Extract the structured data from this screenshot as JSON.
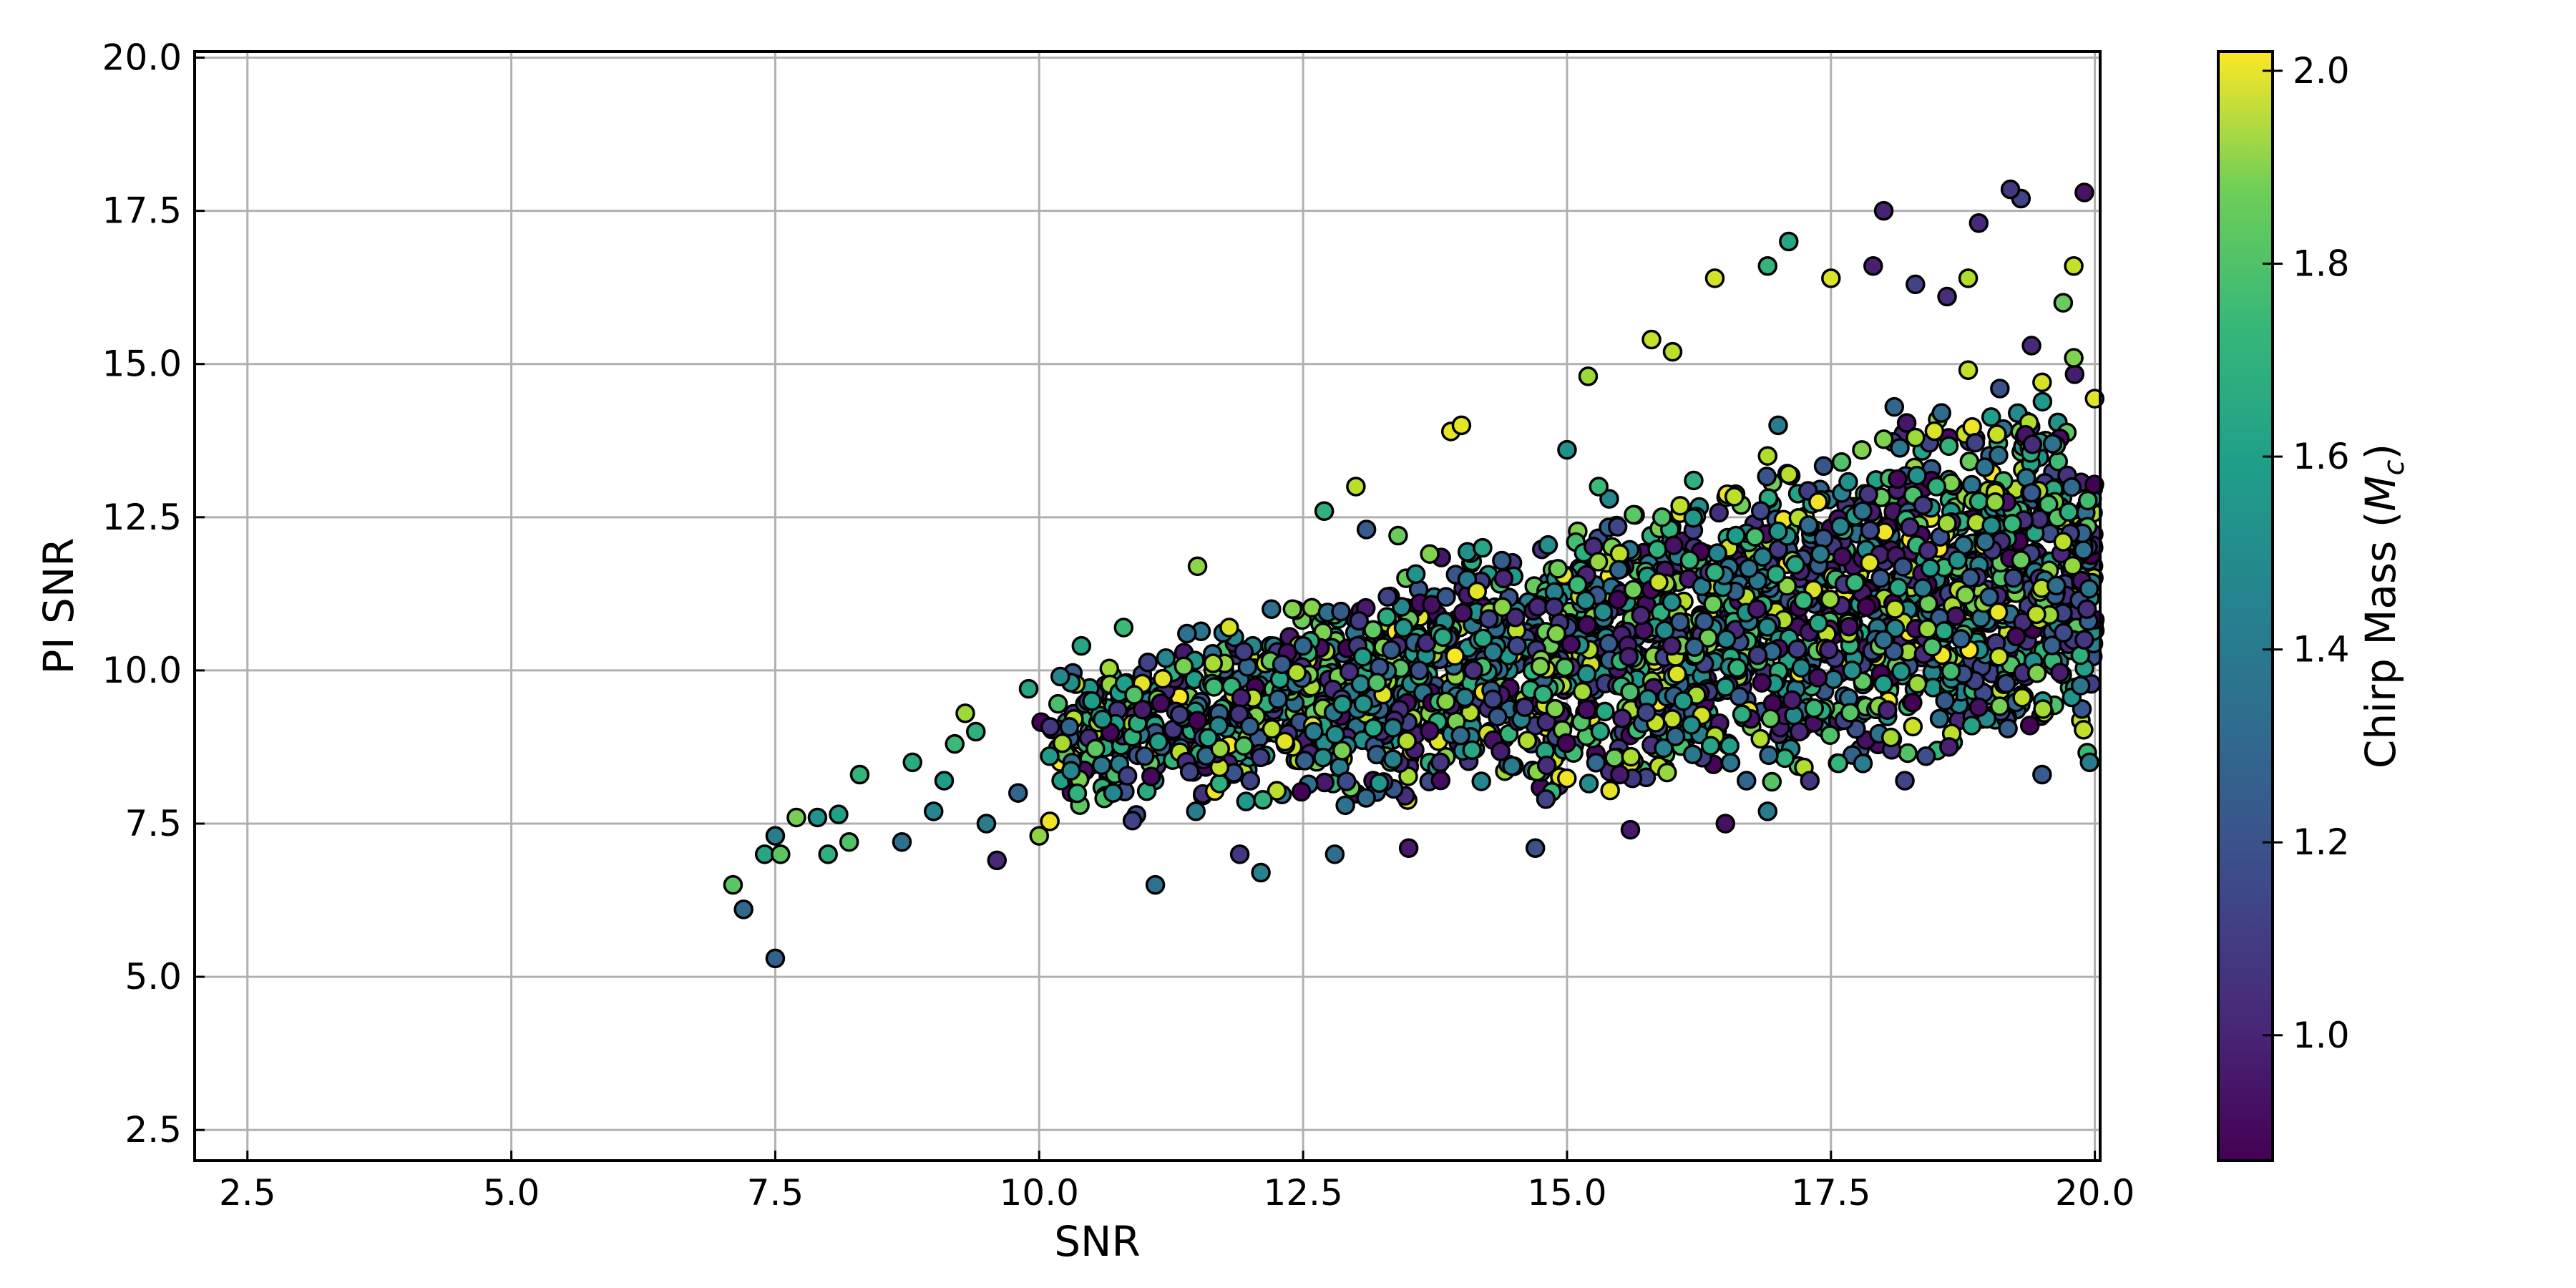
{
  "chart_data": {
    "type": "scatter",
    "xlabel": "SNR",
    "ylabel": "PI SNR",
    "xlim": [
      2.0,
      20.05
    ],
    "ylim": [
      2.0,
      20.1
    ],
    "xticks": [
      "2.5",
      "5.0",
      "7.5",
      "10.0",
      "12.5",
      "15.0",
      "17.5",
      "20.0"
    ],
    "yticks": [
      "2.5",
      "5.0",
      "7.5",
      "10.0",
      "12.5",
      "15.0",
      "17.5",
      "20.0"
    ],
    "grid": true,
    "colorbar": {
      "label": "Chirp Mass (",
      "label_math_base": "M",
      "label_math_sub": "c",
      "label_close": ")",
      "range": [
        0.87,
        2.02
      ],
      "ticks": [
        "1.0",
        "1.2",
        "1.4",
        "1.6",
        "1.8",
        "2.0"
      ],
      "colormap": "viridis"
    },
    "marker_edge_color": "#000000",
    "points_x": [
      7.1,
      7.2,
      7.4,
      7.5,
      7.5,
      7.55,
      7.7,
      8.0,
      8.2,
      8.3,
      7.9,
      8.1,
      8.7,
      8.8,
      9.0,
      9.1,
      9.3,
      9.5,
      9.6,
      9.8,
      10.0,
      10.3,
      11.1,
      12.1,
      11.9,
      12.8,
      13.5,
      14.7,
      15.6,
      16.5,
      16.9,
      17.3,
      18.2,
      19.5,
      19.95,
      19.3,
      19.2,
      18.9,
      18.0,
      17.9,
      17.1,
      16.4,
      16.9,
      19.7,
      19.4,
      19.9,
      18.6,
      18.3,
      13.9,
      15.8,
      13.0,
      12.7,
      11.5,
      10.8,
      10.4,
      11.8,
      14.0,
      15.2,
      16.0,
      17.5,
      18.8,
      19.8,
      10.5,
      11.2,
      12.2,
      13.1,
      14.2,
      15.0,
      16.2,
      17.0,
      18.1,
      19.1,
      9.2,
      9.9,
      10.6,
      11.4,
      12.3,
      13.3,
      14.4,
      15.4,
      16.6,
      17.6,
      18.5,
      19.6,
      9.4,
      10.1,
      10.9,
      11.7,
      12.5,
      13.6,
      14.6,
      15.7,
      16.8,
      17.8,
      18.7,
      19.4,
      12.0,
      13.8,
      15.5,
      17.2,
      18.9,
      11.0,
      12.9,
      14.8,
      16.7,
      18.4,
      19.9,
      10.7,
      12.6,
      14.1,
      16.1,
      17.7,
      19.0,
      13.4,
      15.1,
      16.3,
      17.4,
      18.6,
      19.7,
      11.6,
      13.2,
      14.9,
      16.4,
      18.0,
      19.3,
      12.4,
      14.3,
      15.9,
      17.1,
      18.3,
      19.5,
      10.2,
      13.7,
      15.3,
      16.9,
      18.8,
      19.8
    ],
    "points_y": [
      6.5,
      6.1,
      7.0,
      5.3,
      7.3,
      7.0,
      7.6,
      7.0,
      7.2,
      8.3,
      7.6,
      7.65,
      7.2,
      8.5,
      7.7,
      8.2,
      9.3,
      7.5,
      6.9,
      8.0,
      7.3,
      9.8,
      6.5,
      6.7,
      7.0,
      7.0,
      7.1,
      7.1,
      7.4,
      7.5,
      7.7,
      8.2,
      8.2,
      8.3,
      8.5,
      17.7,
      17.85,
      17.3,
      17.5,
      16.6,
      17.0,
      16.4,
      16.6,
      16.0,
      15.3,
      17.8,
      16.1,
      16.3,
      13.9,
      15.4,
      13.0,
      12.6,
      11.7,
      10.7,
      10.4,
      10.7,
      14.0,
      14.8,
      15.2,
      16.4,
      16.4,
      16.6,
      9.5,
      10.2,
      11.0,
      12.3,
      12.0,
      13.6,
      13.1,
      14.0,
      14.3,
      14.6,
      8.8,
      9.7,
      9.2,
      10.6,
      10.1,
      11.2,
      11.5,
      12.8,
      12.2,
      13.4,
      13.0,
      13.7,
      9.0,
      8.6,
      9.6,
      9.1,
      10.4,
      10.0,
      9.4,
      10.9,
      11.0,
      12.6,
      11.8,
      12.9,
      8.2,
      8.5,
      8.3,
      9.0,
      9.4,
      8.6,
      7.8,
      7.9,
      8.2,
      8.6,
      10.5,
      8.0,
      9.0,
      8.7,
      9.5,
      10.0,
      11.2,
      12.2,
      11.4,
      10.8,
      11.9,
      12.4,
      12.1,
      8.9,
      9.8,
      10.6,
      11.6,
      10.5,
      11.8,
      11.0,
      10.3,
      12.5,
      13.2,
      13.8,
      14.7,
      9.9,
      11.9,
      13.0,
      13.5,
      14.9,
      15.1
    ],
    "points_c": [
      1.72,
      1.25,
      1.55,
      1.22,
      1.35,
      1.72,
      1.78,
      1.6,
      1.7,
      1.62,
      1.45,
      1.52,
      1.3,
      1.58,
      1.4,
      1.5,
      1.85,
      1.35,
      1.0,
      1.25,
      1.82,
      1.45,
      1.3,
      1.38,
      1.05,
      1.28,
      0.95,
      1.15,
      0.95,
      0.92,
      1.35,
      1.05,
      1.1,
      1.2,
      1.35,
      1.1,
      1.05,
      1.0,
      0.98,
      0.97,
      1.55,
      1.95,
      1.62,
      1.75,
      1.0,
      0.93,
      1.02,
      1.1,
      1.98,
      1.92,
      1.9,
      1.6,
      1.82,
      1.65,
      1.55,
      1.95,
      1.98,
      1.85,
      1.9,
      1.96,
      1.88,
      1.92,
      1.5,
      1.4,
      1.3,
      1.2,
      1.55,
      1.45,
      1.6,
      1.35,
      1.25,
      1.15,
      1.65,
      1.55,
      1.45,
      1.3,
      1.2,
      1.1,
      1.0,
      1.4,
      1.5,
      1.7,
      1.6,
      1.3,
      1.6,
      1.5,
      1.7,
      1.4,
      1.25,
      1.15,
      1.05,
      1.0,
      0.95,
      1.3,
      1.45,
      1.2,
      1.1,
      1.05,
      0.95,
      1.0,
      0.92,
      1.2,
      1.3,
      1.1,
      1.25,
      1.15,
      1.05,
      1.4,
      1.35,
      1.55,
      1.5,
      1.45,
      1.25,
      1.75,
      1.65,
      1.2,
      1.35,
      1.85,
      1.9,
      1.55,
      1.7,
      1.8,
      1.6,
      1.3,
      1.75,
      1.8,
      1.35,
      1.7,
      1.9,
      1.85,
      1.95,
      1.4,
      1.8,
      1.65,
      1.88,
      1.92,
      1.8
    ],
    "density_note_regions": [
      {
        "x_range": [
          10.0,
          20.0
        ],
        "y_lower_at_xmin": 7.4,
        "y_upper_at_xmin": 10.0,
        "y_lower_at_xmax": 8.5,
        "y_upper_at_xmax": 15.0
      }
    ]
  }
}
